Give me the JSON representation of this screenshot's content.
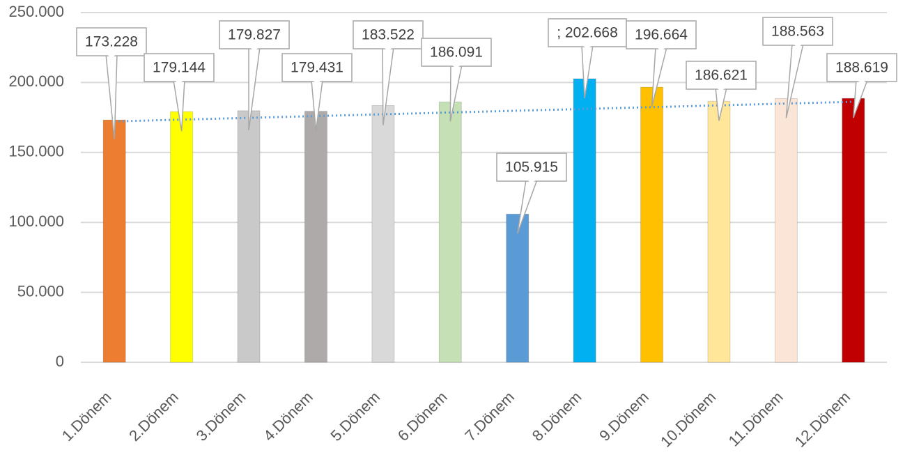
{
  "chart_data": {
    "type": "bar",
    "categories": [
      "1.Dönem",
      "2.Dönem",
      "3.Dönem",
      "4.Dönem",
      "5.Dönem",
      "6.Dönem",
      "7.Dönem",
      "8.Dönem",
      "9.Dönem",
      "10.Dönem",
      "11.Dönem",
      "12.Dönem"
    ],
    "values": [
      173228,
      179144,
      179827,
      179431,
      183522,
      186091,
      105915,
      202668,
      196664,
      186621,
      188563,
      188619
    ],
    "value_labels": [
      "173.228",
      "179.144",
      "179.827",
      "179.431",
      "183.522",
      "186.091",
      "105.915",
      "; 202.668",
      "196.664",
      "186.621",
      "188.563",
      "188.619"
    ],
    "colors": [
      "#ed7d31",
      "#ffff00",
      "#c9c9c9",
      "#aeaaaa",
      "#d9d9d9",
      "#c5e0b4",
      "#5b9bd5",
      "#00b0f0",
      "#ffc000",
      "#ffe699",
      "#fbe5d6",
      "#c00000"
    ],
    "ylim": [
      0,
      250000
    ],
    "yticks": [
      0,
      {
        "value": 50000,
        "label": "50.000"
      },
      {
        "value": 100000,
        "label": "100.000"
      },
      {
        "value": 150000,
        "label": "150.000"
      },
      {
        "value": 200000,
        "label": "200.000"
      },
      {
        "value": 250000,
        "label": "250.000"
      }
    ],
    "grid": true,
    "trendline": true
  }
}
